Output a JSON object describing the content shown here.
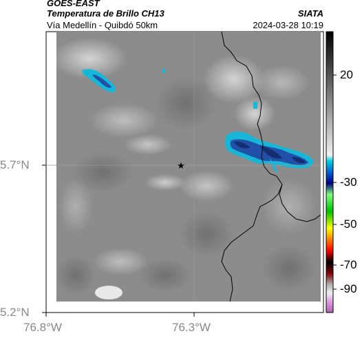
{
  "header": {
    "source": "GOES-EAST",
    "product": "Temperatura de Brillo CH13",
    "region": "Vía Medellín - Quibdó 50km",
    "org": "SIATA",
    "timestamp": "2024-03-28 10:19"
  },
  "axes": {
    "y_ticks": [
      "5.7°N",
      "5.2°N"
    ],
    "x_ticks": [
      "76.8°W",
      "76.3°W"
    ]
  },
  "colorbar": {
    "tick_labels": [
      "20",
      "-30",
      "-50",
      "-70",
      "-90"
    ],
    "range": [
      -95,
      35
    ]
  },
  "map": {
    "marker": "station-star",
    "colors": {
      "background_gray": "#8c8c8c",
      "cold_cloud_blue": "#1f3f8f",
      "cold_cloud_edge": "#15b4d4",
      "border": "#000000",
      "gridline": "#9a9a9a"
    }
  }
}
